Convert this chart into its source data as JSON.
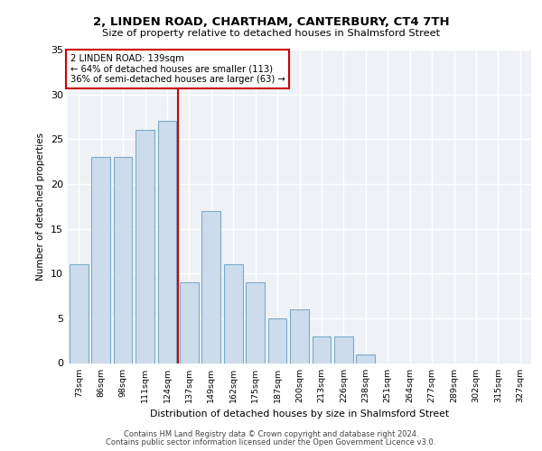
{
  "title1": "2, LINDEN ROAD, CHARTHAM, CANTERBURY, CT4 7TH",
  "title2": "Size of property relative to detached houses in Shalmsford Street",
  "xlabel": "Distribution of detached houses by size in Shalmsford Street",
  "ylabel": "Number of detached properties",
  "categories": [
    "73sqm",
    "86sqm",
    "98sqm",
    "111sqm",
    "124sqm",
    "137sqm",
    "149sqm",
    "162sqm",
    "175sqm",
    "187sqm",
    "200sqm",
    "213sqm",
    "226sqm",
    "238sqm",
    "251sqm",
    "264sqm",
    "277sqm",
    "289sqm",
    "302sqm",
    "315sqm",
    "327sqm"
  ],
  "values": [
    11,
    23,
    23,
    26,
    27,
    9,
    17,
    11,
    9,
    5,
    6,
    3,
    3,
    1,
    0,
    0,
    0,
    0,
    0,
    0,
    0
  ],
  "bar_color": "#ccdcec",
  "bar_edge_color": "#7aaac8",
  "red_line_x": 4.5,
  "red_line_color": "#cc0000",
  "annotation_text": "2 LINDEN ROAD: 139sqm\n← 64% of detached houses are smaller (113)\n36% of semi-detached houses are larger (63) →",
  "annotation_box_color": "#ffffff",
  "annotation_box_edge": "#cc0000",
  "ylim": [
    0,
    35
  ],
  "yticks": [
    0,
    5,
    10,
    15,
    20,
    25,
    30,
    35
  ],
  "bg_color": "#eef2f7",
  "grid_color": "#ffffff",
  "footer1": "Contains HM Land Registry data © Crown copyright and database right 2024.",
  "footer2": "Contains public sector information licensed under the Open Government Licence v3.0."
}
